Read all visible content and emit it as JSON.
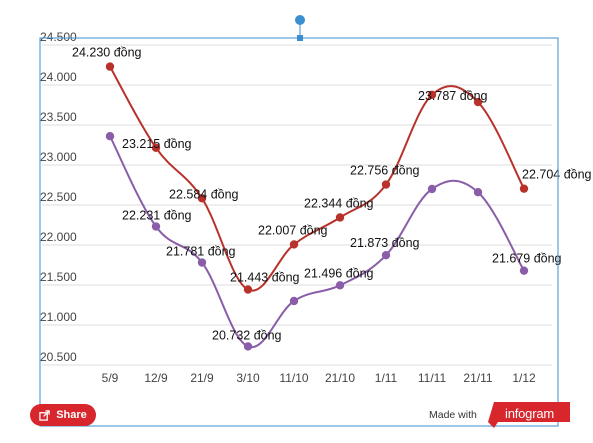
{
  "chart_data": {
    "type": "line",
    "categories": [
      "5/9",
      "12/9",
      "21/9",
      "3/10",
      "11/10",
      "21/10",
      "1/11",
      "11/11",
      "21/11",
      "1/12"
    ],
    "ylim": [
      20500,
      24500
    ],
    "yticks": [
      "20.500",
      "21.000",
      "21.500",
      "22.000",
      "22.500",
      "23.000",
      "23.500",
      "24.000",
      "24.500"
    ],
    "ytick_values": [
      20500,
      21000,
      21500,
      22000,
      22500,
      23000,
      23500,
      24000,
      24500
    ],
    "grid": true,
    "series": [
      {
        "color": "#b8322b",
        "values": [
          24230,
          23215,
          22584,
          21443,
          22007,
          22344,
          22756,
          23877,
          23787,
          22704
        ],
        "labels": [
          "24.230 đồng",
          "23.215 đồng",
          "22.584 đồng",
          "21.443 đồng",
          "22.007 đồng",
          "22.344 đồng",
          "22.756 đồng",
          "",
          "23.787 đồng",
          "22.704 đồng"
        ]
      },
      {
        "color": "#8a5da8",
        "values": [
          23360,
          22231,
          21781,
          20732,
          21300,
          21496,
          21873,
          22700,
          22660,
          21679
        ],
        "labels": [
          "",
          "22.231 đồng",
          "21.781 đồng",
          "20.732 đồng",
          "",
          "21.496 đồng",
          "21.873 đồng",
          "",
          "",
          "21.679 đồng"
        ]
      }
    ]
  },
  "footer": {
    "share_label": "Share",
    "made_with": "Made with",
    "brand": "infogram",
    "brand_color": "#d7262c"
  },
  "selection_color": "#3a8fd0"
}
